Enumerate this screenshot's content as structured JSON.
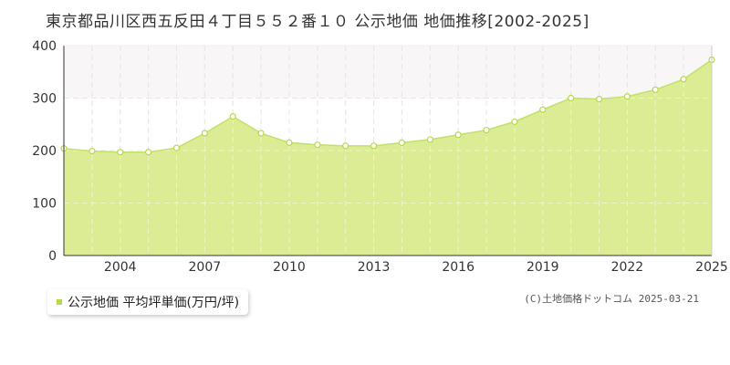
{
  "title": "東京都品川区西五反田４丁目５５２番１０ 公示地価 地価推移[2002-2025]",
  "legend": {
    "label": "公示地価 平均坪単価(万円/坪)"
  },
  "credit": "(C)土地価格ドットコム 2025-03-21",
  "colors": {
    "area_fill": "#dcec95",
    "line": "#c2e06a",
    "marker_fill": "#ffffff",
    "marker_stroke": "#b4d94a",
    "upper_band": "#f9f6f8",
    "grid": "#d6d6d6",
    "axis": "#333333",
    "legend_marker": "#b4d94a"
  },
  "chart_data": {
    "type": "area",
    "x": [
      2002,
      2003,
      2004,
      2005,
      2006,
      2007,
      2008,
      2009,
      2010,
      2011,
      2012,
      2013,
      2014,
      2015,
      2016,
      2017,
      2018,
      2019,
      2020,
      2021,
      2022,
      2023,
      2024,
      2025
    ],
    "series": [
      {
        "name": "公示地価 平均坪単価(万円/坪)",
        "values": [
          204,
          199,
          197,
          197,
          205,
          233,
          265,
          233,
          215,
          211,
          209,
          209,
          215,
          221,
          230,
          239,
          255,
          278,
          300,
          298,
          303,
          316,
          336,
          373
        ]
      }
    ],
    "x_ticks": [
      "2004",
      "2007",
      "2010",
      "2013",
      "2016",
      "2019",
      "2022",
      "2025"
    ],
    "x_tick_values": [
      2004,
      2007,
      2010,
      2013,
      2016,
      2019,
      2022,
      2025
    ],
    "y_ticks": [
      "0",
      "100",
      "200",
      "300",
      "400"
    ],
    "y_tick_values": [
      0,
      100,
      200,
      300,
      400
    ],
    "xlim": [
      2002,
      2025
    ],
    "ylim": [
      0,
      400
    ],
    "xlabel": "",
    "ylabel": "",
    "grid": true,
    "legend_position": "bottom-left"
  }
}
